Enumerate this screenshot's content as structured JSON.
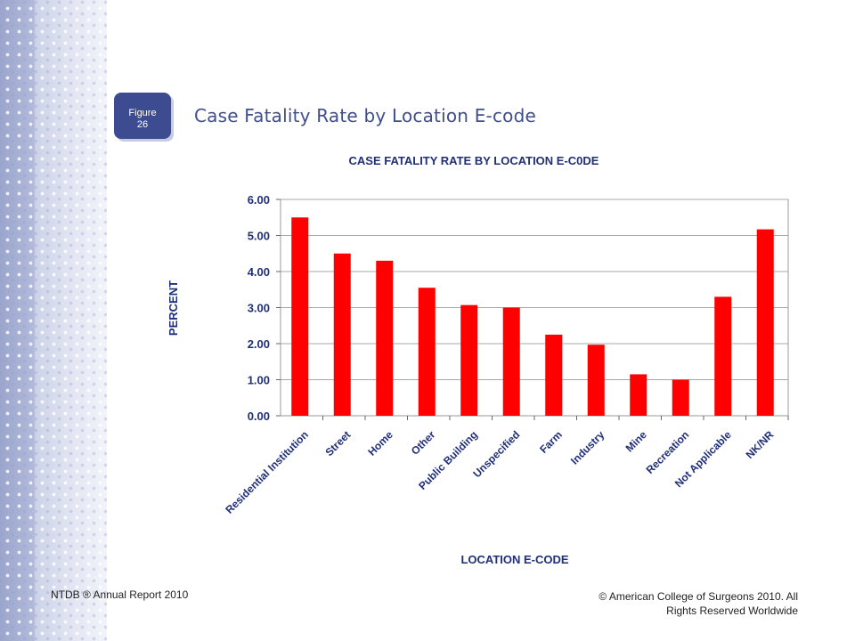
{
  "slide": {
    "figure_label": "Figure",
    "figure_number": "26",
    "title": "Case Fatality Rate by Location E-code"
  },
  "footer": {
    "left": "NTDB ® Annual Report 2010",
    "right_line1": "© American College of Surgeons 2010.  All",
    "right_line2": "Rights Reserved Worldwide"
  },
  "colors": {
    "bar": "#ff0000",
    "chart_text": "#1f2f7a",
    "accent": "#3d4c90"
  },
  "chart_data": {
    "type": "bar",
    "title": "CASE FATALITY RATE BY LOCATION E-C0DE",
    "xlabel": "LOCATION E-CODE",
    "ylabel": "PERCENT",
    "categories": [
      "Residential Institution",
      "Street",
      "Home",
      "Other",
      "Public Building",
      "Unspecified",
      "Farm",
      "Industry",
      "Mine",
      "Recreation",
      "Not Applicable",
      "NK/NR"
    ],
    "values": [
      5.5,
      4.5,
      4.3,
      3.55,
      3.07,
      3.0,
      2.25,
      1.97,
      1.15,
      1.0,
      3.3,
      5.17
    ],
    "yticks": [
      "0.00",
      "1.00",
      "2.00",
      "3.00",
      "4.00",
      "5.00",
      "6.00"
    ],
    "ylim": [
      0,
      6
    ],
    "grid": true,
    "legend": "none"
  }
}
